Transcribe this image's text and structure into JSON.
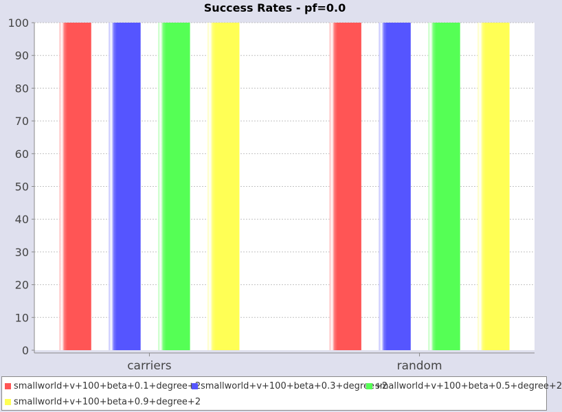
{
  "chart_data": {
    "type": "bar",
    "title": "Success Rates - pf=0.0",
    "xlabel": "",
    "ylabel": "",
    "categories": [
      "carriers",
      "random"
    ],
    "ylim": [
      0,
      100
    ],
    "yticks": [
      0,
      10,
      20,
      30,
      40,
      50,
      60,
      70,
      80,
      90,
      100
    ],
    "grid": true,
    "legend_position": "bottom",
    "series": [
      {
        "name": "smallworld+v+100+beta+0.1+degree+2",
        "color": "#ff5555",
        "values": [
          100,
          100
        ]
      },
      {
        "name": "smallworld+v+100+beta+0.3+degree+2",
        "color": "#5555ff",
        "values": [
          100,
          100
        ]
      },
      {
        "name": "smallworld+v+100+beta+0.5+degree+2",
        "color": "#55ff55",
        "values": [
          100,
          100
        ]
      },
      {
        "name": "smallworld+v+100+beta+0.9+degree+2",
        "color": "#ffff55",
        "values": [
          100,
          100
        ]
      }
    ]
  }
}
